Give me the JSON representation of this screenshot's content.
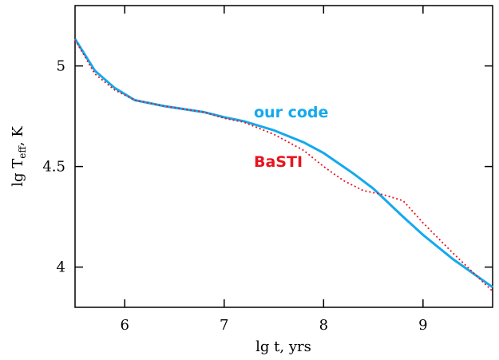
{
  "chart_data": {
    "type": "line",
    "xlabel": "lg t, yrs",
    "ylabel": [
      "lg T",
      "eff",
      ", K"
    ],
    "xlim": [
      5.5,
      9.7
    ],
    "xticks": [
      6,
      7,
      8,
      9
    ],
    "ylim": [
      3.8,
      5.3
    ],
    "yticks": [
      {
        "value": 4,
        "label": "4"
      },
      {
        "value": 4.5,
        "label": "4.5"
      },
      {
        "value": 5,
        "label": "5"
      }
    ],
    "series": [
      {
        "name": "our code",
        "color": "#14a9ee",
        "style": "solid",
        "x": [
          5.5,
          5.7,
          5.9,
          6.1,
          6.4,
          6.8,
          7.0,
          7.2,
          7.5,
          7.8,
          8.0,
          8.3,
          8.5,
          8.8,
          9.0,
          9.3,
          9.7
        ],
        "values": [
          5.134,
          4.976,
          4.89,
          4.83,
          4.8,
          4.77,
          4.745,
          4.725,
          4.68,
          4.62,
          4.567,
          4.465,
          4.39,
          4.25,
          4.16,
          4.04,
          3.9
        ]
      },
      {
        "name": "BaSTI",
        "color": "#e8141e",
        "style": "dotted",
        "x": [
          5.5,
          5.7,
          5.9,
          6.1,
          6.4,
          6.8,
          7.0,
          7.2,
          7.5,
          7.8,
          8.0,
          8.2,
          8.4,
          8.6,
          8.8,
          9.0,
          9.3,
          9.7
        ],
        "values": [
          5.13,
          4.96,
          4.88,
          4.83,
          4.8,
          4.77,
          4.74,
          4.72,
          4.66,
          4.58,
          4.5,
          4.43,
          4.38,
          4.36,
          4.33,
          4.22,
          4.07,
          3.88
        ]
      }
    ]
  }
}
